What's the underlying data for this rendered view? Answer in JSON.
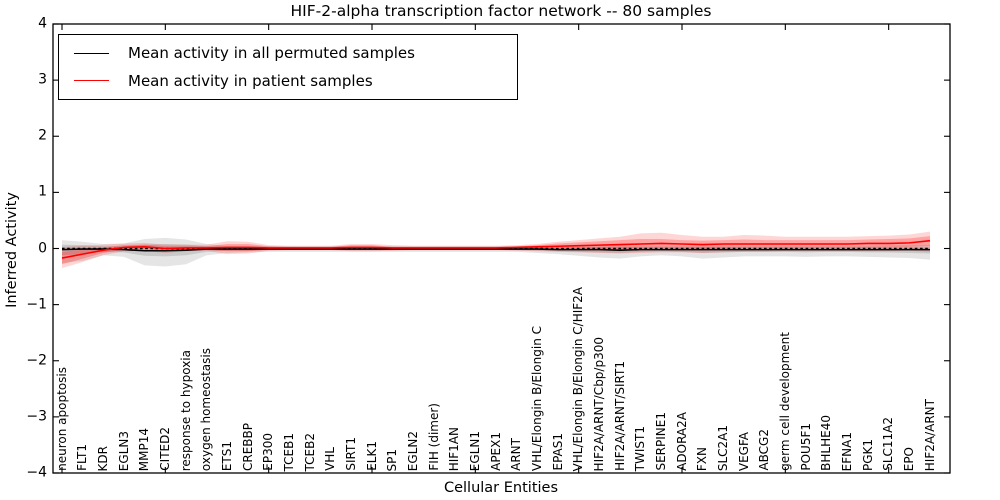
{
  "page": {
    "background": "#ffffff"
  },
  "chart_data": {
    "type": "line",
    "title": "HIF-2-alpha transcription factor network -- 80 samples",
    "xlabel": "Cellular Entities",
    "ylabel": "Inferred Activity",
    "ylim": [
      -4,
      4
    ],
    "grid": false,
    "legend_position": "upper left",
    "x_major_tick_every": 5,
    "yticks": {
      "values": [
        4,
        3,
        2,
        1,
        0,
        -1,
        -2,
        -3,
        -4
      ],
      "labels": [
        "4",
        "3",
        "2",
        "1",
        "0",
        "−1",
        "−2",
        "−3",
        "−4"
      ]
    },
    "categories": [
      "neuron apoptosis",
      "FLT1",
      "KDR",
      "EGLN3",
      "MMP14",
      "CITED2",
      "response to hypoxia",
      "oxygen homeostasis",
      "ETS1",
      "CREBBP",
      "EP300",
      "TCEB1",
      "TCEB2",
      "VHL",
      "SIRT1",
      "ELK1",
      "SP1",
      "EGLN2",
      "FIH (dimer)",
      "HIF1AN",
      "EGLN1",
      "APEX1",
      "ARNT",
      "VHL/Elongin B/Elongin C",
      "EPAS1",
      "VHL/Elongin B/Elongin C/HIF2A",
      "HIF2A/ARNT/Cbp/p300",
      "HIF2A/ARNT/SIRT1",
      "TWIST1",
      "SERPINE1",
      "ADORA2A",
      "FXN",
      "SLC2A1",
      "VEGFA",
      "ABCG2",
      "germ cell development",
      "POU5F1",
      "BHLHE40",
      "EFNA1",
      "PGK1",
      "SLC11A2",
      "EPO",
      "HIF2A/ARNT"
    ],
    "reference_line": {
      "y": 0,
      "style": "dashed",
      "color": "#000000"
    },
    "series": [
      {
        "id": "permuted",
        "name": "Mean activity in all permuted samples",
        "color": "#000000",
        "band_alpha_outer": 0.1,
        "band_alpha_inner": 0.12,
        "mean": [
          -0.02,
          -0.01,
          -0.01,
          -0.02,
          -0.04,
          -0.04,
          -0.03,
          -0.01,
          -0.01,
          -0.01,
          -0.01,
          -0.01,
          -0.01,
          -0.01,
          -0.01,
          -0.01,
          -0.01,
          -0.01,
          -0.01,
          -0.01,
          -0.01,
          -0.01,
          -0.01,
          -0.01,
          -0.02,
          -0.02,
          -0.02,
          -0.03,
          -0.02,
          -0.02,
          -0.02,
          -0.02,
          -0.02,
          -0.02,
          -0.02,
          -0.02,
          -0.02,
          -0.02,
          -0.02,
          -0.02,
          -0.02,
          -0.02,
          -0.02
        ],
        "band_outer": {
          "lower": [
            -0.26,
            -0.22,
            -0.12,
            -0.15,
            -0.3,
            -0.32,
            -0.28,
            -0.12,
            -0.08,
            -0.07,
            -0.06,
            -0.06,
            -0.06,
            -0.06,
            -0.06,
            -0.06,
            -0.06,
            -0.06,
            -0.06,
            -0.06,
            -0.06,
            -0.06,
            -0.06,
            -0.08,
            -0.1,
            -0.13,
            -0.16,
            -0.18,
            -0.14,
            -0.12,
            -0.14,
            -0.18,
            -0.16,
            -0.14,
            -0.14,
            -0.14,
            -0.15,
            -0.14,
            -0.14,
            -0.15,
            -0.16,
            -0.17,
            -0.2
          ],
          "upper": [
            0.15,
            0.12,
            0.08,
            0.09,
            0.17,
            0.19,
            0.16,
            0.08,
            0.05,
            0.05,
            0.04,
            0.04,
            0.04,
            0.04,
            0.04,
            0.04,
            0.04,
            0.04,
            0.04,
            0.04,
            0.04,
            0.04,
            0.04,
            0.05,
            0.05,
            0.05,
            0.06,
            0.06,
            0.05,
            0.05,
            0.05,
            0.06,
            0.06,
            0.05,
            0.05,
            0.05,
            0.05,
            0.05,
            0.05,
            0.05,
            0.06,
            0.06,
            0.07
          ]
        },
        "band_inner": {
          "lower": [
            -0.12,
            -0.1,
            -0.06,
            -0.07,
            -0.13,
            -0.14,
            -0.12,
            -0.06,
            -0.04,
            -0.04,
            -0.03,
            -0.03,
            -0.03,
            -0.03,
            -0.03,
            -0.03,
            -0.03,
            -0.03,
            -0.03,
            -0.03,
            -0.03,
            -0.03,
            -0.03,
            -0.04,
            -0.05,
            -0.06,
            -0.07,
            -0.08,
            -0.06,
            -0.05,
            -0.06,
            -0.08,
            -0.07,
            -0.06,
            -0.06,
            -0.06,
            -0.07,
            -0.06,
            -0.06,
            -0.07,
            -0.07,
            -0.08,
            -0.09
          ],
          "upper": [
            0.07,
            0.06,
            0.04,
            0.04,
            0.07,
            0.08,
            0.07,
            0.04,
            0.02,
            0.02,
            0.02,
            0.02,
            0.02,
            0.02,
            0.02,
            0.02,
            0.02,
            0.02,
            0.02,
            0.02,
            0.02,
            0.02,
            0.02,
            0.02,
            0.02,
            0.02,
            0.03,
            0.03,
            0.02,
            0.02,
            0.02,
            0.03,
            0.03,
            0.02,
            0.02,
            0.02,
            0.02,
            0.02,
            0.02,
            0.02,
            0.03,
            0.03,
            0.03
          ]
        }
      },
      {
        "id": "patient",
        "name": "Mean activity in patient samples",
        "color": "#ff0000",
        "band_alpha_outer": 0.16,
        "band_alpha_inner": 0.24,
        "mean": [
          -0.17,
          -0.1,
          -0.03,
          0.02,
          0.03,
          0.0,
          0.01,
          0.01,
          0.02,
          0.02,
          0.01,
          0.01,
          0.01,
          0.01,
          0.02,
          0.02,
          0.01,
          0.01,
          0.01,
          0.01,
          0.01,
          0.01,
          0.02,
          0.03,
          0.04,
          0.05,
          0.06,
          0.07,
          0.08,
          0.09,
          0.08,
          0.07,
          0.08,
          0.08,
          0.08,
          0.08,
          0.08,
          0.08,
          0.08,
          0.09,
          0.09,
          0.1,
          0.14
        ],
        "band_outer": {
          "lower": [
            -0.35,
            -0.24,
            -0.12,
            -0.05,
            -0.04,
            -0.08,
            -0.05,
            -0.04,
            -0.1,
            -0.09,
            -0.04,
            -0.03,
            -0.03,
            -0.03,
            -0.05,
            -0.05,
            -0.04,
            -0.03,
            -0.03,
            -0.03,
            -0.03,
            -0.03,
            -0.04,
            -0.05,
            -0.06,
            -0.07,
            -0.08,
            -0.09,
            -0.08,
            -0.07,
            -0.07,
            -0.08,
            -0.07,
            -0.06,
            -0.06,
            -0.05,
            -0.05,
            -0.05,
            -0.05,
            -0.05,
            -0.05,
            -0.04,
            -0.06
          ],
          "upper": [
            0.03,
            0.05,
            0.07,
            0.09,
            0.1,
            0.07,
            0.07,
            0.07,
            0.13,
            0.12,
            0.06,
            0.05,
            0.05,
            0.05,
            0.08,
            0.08,
            0.06,
            0.05,
            0.05,
            0.05,
            0.05,
            0.05,
            0.06,
            0.08,
            0.12,
            0.15,
            0.18,
            0.21,
            0.27,
            0.28,
            0.24,
            0.21,
            0.21,
            0.24,
            0.23,
            0.21,
            0.21,
            0.21,
            0.21,
            0.22,
            0.23,
            0.25,
            0.3
          ]
        },
        "band_inner": {
          "lower": [
            -0.28,
            -0.18,
            -0.08,
            -0.02,
            -0.01,
            -0.04,
            -0.02,
            -0.02,
            -0.05,
            -0.05,
            -0.02,
            -0.01,
            -0.01,
            -0.01,
            -0.02,
            -0.02,
            -0.01,
            -0.01,
            -0.01,
            -0.01,
            -0.01,
            -0.01,
            -0.01,
            -0.01,
            -0.01,
            -0.01,
            -0.01,
            -0.01,
            0.0,
            0.01,
            0.0,
            0.0,
            0.0,
            0.01,
            0.01,
            0.01,
            0.01,
            0.01,
            0.01,
            0.01,
            0.02,
            0.03,
            0.04
          ],
          "upper": [
            -0.06,
            -0.02,
            0.02,
            0.06,
            0.07,
            0.04,
            0.04,
            0.04,
            0.08,
            0.08,
            0.04,
            0.03,
            0.03,
            0.03,
            0.06,
            0.06,
            0.03,
            0.03,
            0.03,
            0.03,
            0.03,
            0.03,
            0.04,
            0.06,
            0.09,
            0.11,
            0.13,
            0.15,
            0.17,
            0.17,
            0.15,
            0.14,
            0.15,
            0.16,
            0.15,
            0.15,
            0.15,
            0.15,
            0.15,
            0.16,
            0.17,
            0.18,
            0.22
          ]
        }
      }
    ]
  }
}
